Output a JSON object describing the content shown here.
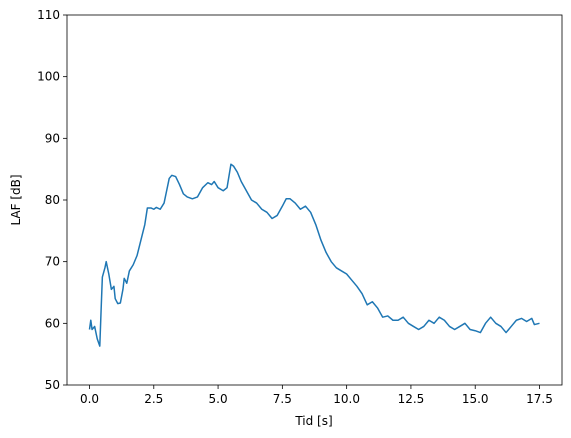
{
  "chart_data": {
    "type": "line",
    "x_label": "Tid [s]",
    "y_label": "LAF [dB]",
    "x": [
      0.0,
      0.05,
      0.1,
      0.2,
      0.3,
      0.4,
      0.45,
      0.5,
      0.6,
      0.65,
      0.75,
      0.85,
      0.95,
      1.0,
      1.1,
      1.2,
      1.3,
      1.35,
      1.45,
      1.55,
      1.7,
      1.85,
      2.0,
      2.15,
      2.25,
      2.4,
      2.5,
      2.6,
      2.75,
      2.9,
      3.0,
      3.1,
      3.2,
      3.35,
      3.5,
      3.65,
      3.8,
      4.0,
      4.2,
      4.4,
      4.6,
      4.75,
      4.85,
      5.0,
      5.2,
      5.35,
      5.5,
      5.6,
      5.75,
      5.9,
      6.1,
      6.3,
      6.5,
      6.7,
      6.9,
      7.1,
      7.3,
      7.5,
      7.65,
      7.8,
      8.0,
      8.2,
      8.4,
      8.6,
      8.8,
      9.0,
      9.2,
      9.4,
      9.6,
      9.8,
      10.0,
      10.2,
      10.4,
      10.6,
      10.8,
      11.0,
      11.2,
      11.4,
      11.6,
      11.8,
      12.0,
      12.2,
      12.4,
      12.6,
      12.8,
      13.0,
      13.2,
      13.4,
      13.6,
      13.8,
      14.0,
      14.2,
      14.4,
      14.6,
      14.8,
      15.0,
      15.2,
      15.4,
      15.6,
      15.8,
      16.0,
      16.2,
      16.4,
      16.6,
      16.8,
      17.0,
      17.2,
      17.3,
      17.5
    ],
    "series": [
      {
        "color": "#1f77b4",
        "values": [
          59,
          60.5,
          59,
          59.5,
          57.5,
          56.3,
          62,
          67.5,
          69,
          70,
          68,
          65.5,
          66,
          64,
          63.2,
          63.3,
          65.5,
          67.3,
          66.5,
          68.5,
          69.5,
          71,
          73.5,
          76,
          78.7,
          78.7,
          78.5,
          78.8,
          78.5,
          79.5,
          81.5,
          83.5,
          84,
          83.8,
          82.5,
          81,
          80.5,
          80.2,
          80.5,
          82,
          82.8,
          82.5,
          83,
          82,
          81.5,
          82,
          85.8,
          85.5,
          84.5,
          83,
          81.5,
          80,
          79.5,
          78.5,
          78,
          77,
          77.5,
          79,
          80.2,
          80.2,
          79.5,
          78.5,
          79,
          78,
          76,
          73.5,
          71.5,
          70,
          69,
          68.5,
          68,
          67,
          66,
          64.8,
          63,
          63.5,
          62.5,
          61,
          61.2,
          60.5,
          60.5,
          61,
          60,
          59.5,
          59,
          59.5,
          60.5,
          60,
          61,
          60.5,
          59.5,
          59,
          59.5,
          60,
          59,
          58.8,
          58.5,
          60,
          61,
          60,
          59.5,
          58.5,
          59.5,
          60.5,
          60.8,
          60.3,
          60.8,
          59.8,
          60
        ]
      }
    ],
    "xlim": [
      -0.875,
      18.375
    ],
    "xticks": [
      {
        "value": 0,
        "label": "0.0"
      },
      2.5,
      {
        "value": 5,
        "label": "5.0"
      },
      7.5,
      {
        "value": 10,
        "label": "10.0"
      },
      12.5,
      {
        "value": 15,
        "label": "15.0"
      },
      17.5
    ],
    "ylim": [
      50,
      110
    ],
    "yticks": [
      50,
      60,
      70,
      80,
      90,
      100,
      110
    ]
  }
}
